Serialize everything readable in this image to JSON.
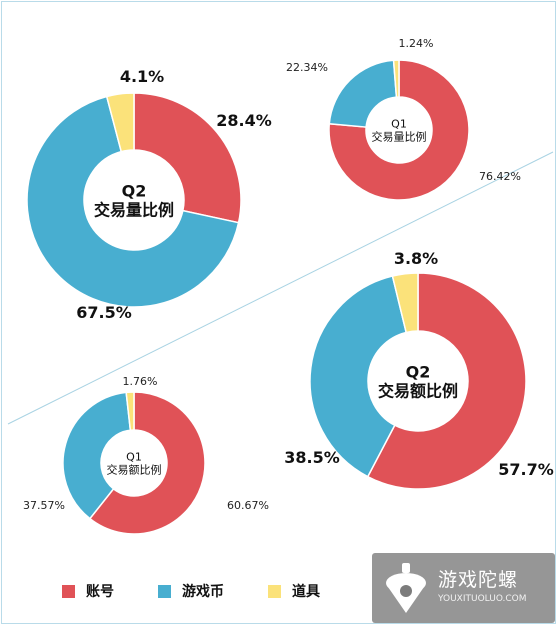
{
  "chart_data": [
    {
      "type": "donut",
      "title": "Q2 交易量比例",
      "title_lines": [
        "Q2",
        "交易量比例"
      ],
      "series": [
        {
          "name": "账号",
          "value": 28.4,
          "label": "28.4%"
        },
        {
          "name": "游戏币",
          "value": 67.5,
          "label": "67.5%"
        },
        {
          "name": "道具",
          "value": 4.1,
          "label": "4.1%"
        }
      ]
    },
    {
      "type": "donut",
      "title": "Q1 交易量比例",
      "title_lines": [
        "Q1",
        "交易量比例"
      ],
      "series": [
        {
          "name": "账号",
          "value": 76.42,
          "label": "76.42%"
        },
        {
          "name": "游戏币",
          "value": 22.34,
          "label": "22.34%"
        },
        {
          "name": "道具",
          "value": 1.24,
          "label": "1.24%"
        }
      ]
    },
    {
      "type": "donut",
      "title": "Q2 交易额比例",
      "title_lines": [
        "Q2",
        "交易额比例"
      ],
      "series": [
        {
          "name": "账号",
          "value": 57.7,
          "label": "57.7%"
        },
        {
          "name": "游戏币",
          "value": 38.5,
          "label": "38.5%"
        },
        {
          "name": "道具",
          "value": 3.8,
          "label": "3.8%"
        }
      ]
    },
    {
      "type": "donut",
      "title": "Q1 交易额比例",
      "title_lines": [
        "Q1",
        "交易额比例"
      ],
      "series": [
        {
          "name": "账号",
          "value": 60.67,
          "label": "60.67%"
        },
        {
          "name": "游戏币",
          "value": 37.57,
          "label": "37.57%"
        },
        {
          "name": "道具",
          "value": 1.76,
          "label": "1.76%"
        }
      ]
    }
  ],
  "legend": [
    {
      "name": "账号",
      "color": "#e05257"
    },
    {
      "name": "游戏币",
      "color": "#48aed0"
    },
    {
      "name": "道具",
      "color": "#fbe27a"
    }
  ],
  "colors": {
    "account": "#e05257",
    "coins": "#48aed0",
    "items": "#fbe27a",
    "divider": "#a9d3e3"
  },
  "watermark": {
    "title": "游戏陀螺",
    "url": "YOUXITUOLUO.COM",
    "logo_icon": "spinning-top-icon"
  }
}
